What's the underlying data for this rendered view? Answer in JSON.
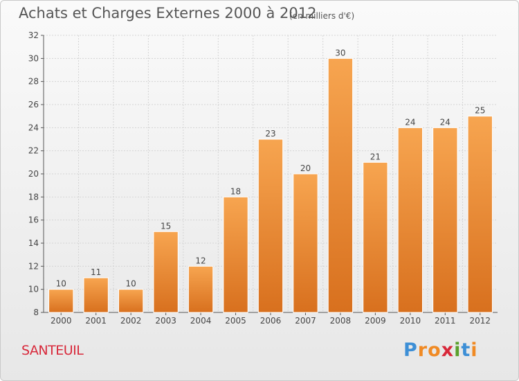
{
  "header": {
    "title": "Achats et Charges Externes 2000 à 2012",
    "unit": "(en milliers d'€)"
  },
  "footer": {
    "commune": "SANTEUIL",
    "logo": "Proxiti"
  },
  "colors": {
    "bar_light": "#f7a550",
    "bar_dark": "#d8701e",
    "title": "#555555",
    "commune": "#d8283a",
    "logo_letters": [
      "#3d8fd6",
      "#f08a24",
      "#f08a24",
      "#d8283a",
      "#5aa02c",
      "#3d8fd6",
      "#f08a24"
    ]
  },
  "chart_data": {
    "type": "bar",
    "title": "Achats et Charges Externes 2000 à 2012",
    "subtitle": "(en milliers d'€)",
    "categories": [
      "2000",
      "2001",
      "2002",
      "2003",
      "2004",
      "2005",
      "2006",
      "2007",
      "2008",
      "2009",
      "2010",
      "2011",
      "2012"
    ],
    "values": [
      10,
      11,
      10,
      15,
      12,
      18,
      23,
      20,
      30,
      21,
      24,
      24,
      25
    ],
    "ylim": [
      8,
      32
    ],
    "yticks": [
      8,
      10,
      12,
      14,
      16,
      18,
      20,
      22,
      24,
      26,
      28,
      30,
      32
    ],
    "grid": true,
    "data_labels": true,
    "xlabel": "",
    "ylabel": ""
  }
}
